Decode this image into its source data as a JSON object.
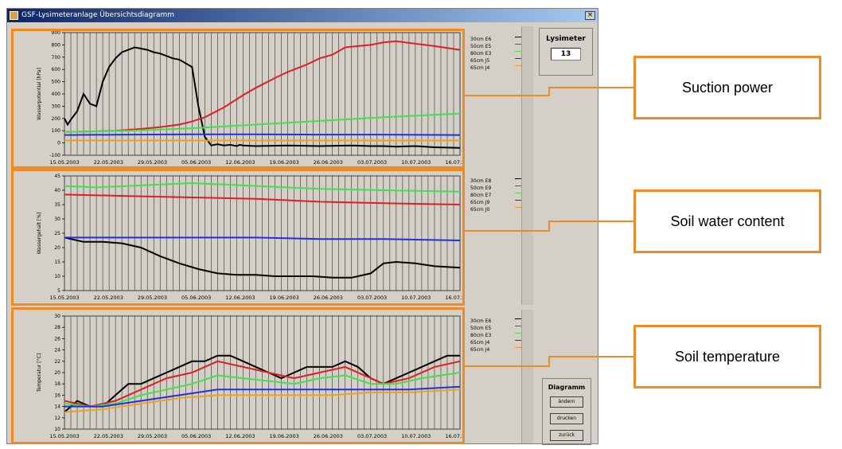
{
  "window": {
    "title": "GSF-Lysimeteranlage Übersichtsdiagramm",
    "close": "×",
    "lysimeter_label": "Lysimeter",
    "lysimeter_value": "13",
    "diagram_label": "Diagramm",
    "buttons": [
      "ändern",
      "drucken",
      "zurück"
    ]
  },
  "callouts": [
    "Suction power",
    "Soil water content",
    "Soil temperature"
  ],
  "colors": {
    "black": "#000000",
    "red": "#e02020",
    "green": "#40e050",
    "blue": "#2030e0",
    "orange": "#f0a020",
    "accent": "#f08a24"
  },
  "chart_data": [
    {
      "type": "line",
      "ylabel": "Wasserpotential [hPa]",
      "ylim": [
        -100,
        900
      ],
      "yticks": [
        "900",
        "800",
        "700",
        "600",
        "500",
        "400",
        "300",
        "200",
        "100",
        "0",
        "-100"
      ],
      "xlabels": [
        "15.05.2003",
        "22.05.2003",
        "29.05.2003",
        "05.06.2003",
        "12.06.2003",
        "19.06.2003",
        "26.06.2003",
        "03.07.2003",
        "10.07.2003",
        "16.07.2003"
      ],
      "legend": [
        {
          "name": "30cm E6",
          "color": "#000000"
        },
        {
          "name": "50cm E5",
          "color": "#e02020"
        },
        {
          "name": "80cm E3",
          "color": "#40e050"
        },
        {
          "name": "65cm J5",
          "color": "#2030e0"
        },
        {
          "name": "65cm J4",
          "color": "#f0a020"
        }
      ],
      "series": [
        {
          "color": "#000000",
          "x": [
            0,
            0.5,
            1,
            2,
            3,
            4,
            5,
            6,
            7,
            8,
            9,
            10,
            11,
            12,
            13,
            14,
            15,
            16,
            17,
            18,
            19,
            20,
            21,
            22,
            23,
            24,
            25,
            26,
            27,
            27.5,
            28,
            30,
            35,
            40,
            45,
            48,
            50,
            52,
            55,
            58,
            62
          ],
          "y": [
            200,
            150,
            190,
            260,
            400,
            320,
            300,
            500,
            620,
            690,
            740,
            760,
            780,
            770,
            760,
            740,
            730,
            710,
            690,
            680,
            650,
            620,
            300,
            50,
            -20,
            -10,
            -20,
            -15,
            -25,
            -15,
            -20,
            -25,
            -20,
            -25,
            -20,
            -25,
            -25,
            -30,
            -25,
            -35,
            -40
          ]
        },
        {
          "color": "#e02020",
          "x": [
            0,
            5,
            8,
            12,
            15,
            18,
            20,
            22,
            25,
            28,
            30,
            33,
            35,
            38,
            40,
            42,
            44,
            46,
            48,
            50,
            52,
            55,
            58,
            62
          ],
          "y": [
            90,
            95,
            100,
            115,
            130,
            150,
            175,
            210,
            290,
            390,
            450,
            530,
            580,
            640,
            690,
            720,
            780,
            790,
            800,
            820,
            830,
            810,
            790,
            760
          ]
        },
        {
          "color": "#40e050",
          "x": [
            0,
            10,
            20,
            30,
            40,
            50,
            62
          ],
          "y": [
            90,
            100,
            120,
            150,
            180,
            210,
            240
          ]
        },
        {
          "color": "#2030e0",
          "x": [
            0,
            10,
            20,
            30,
            40,
            50,
            62
          ],
          "y": [
            65,
            68,
            70,
            70,
            68,
            68,
            65
          ]
        },
        {
          "color": "#f0a020",
          "x": [
            0,
            62
          ],
          "y": [
            20,
            20
          ]
        }
      ]
    },
    {
      "type": "line",
      "ylabel": "Wassergehalt [%]",
      "ylim": [
        5,
        45
      ],
      "yticks": [
        "45",
        "40",
        "35",
        "30",
        "25",
        "20",
        "15",
        "10",
        "5"
      ],
      "xlabels": [
        "15.05.2003",
        "22.05.2003",
        "29.05.2003",
        "05.06.2003",
        "12.06.2003",
        "19.06.2003",
        "26.06.2003",
        "03.07.2003",
        "10.07.2003",
        "16.07.2003"
      ],
      "legend": [
        {
          "name": "30cm E8",
          "color": "#000000"
        },
        {
          "name": "50cm E9",
          "color": "#e02020"
        },
        {
          "name": "80cm E7",
          "color": "#40e050"
        },
        {
          "name": "65cm J9",
          "color": "#2030e0"
        },
        {
          "name": "65cm J0",
          "color": "#f0a020"
        }
      ],
      "series": [
        {
          "color": "#000000",
          "x": [
            0,
            3,
            6,
            9,
            12,
            15,
            18,
            21,
            24,
            27,
            30,
            33,
            36,
            39,
            42,
            45,
            46,
            48,
            50,
            52,
            55,
            58,
            62
          ],
          "y": [
            23.5,
            22,
            22,
            21.5,
            20,
            17,
            14.5,
            12.5,
            11,
            10.5,
            10.5,
            10,
            10,
            10,
            9.5,
            9.5,
            10,
            11,
            14.5,
            15,
            14.5,
            13.5,
            13
          ]
        },
        {
          "color": "#e02020",
          "x": [
            0,
            10,
            20,
            30,
            40,
            50,
            62
          ],
          "y": [
            38.5,
            38,
            37.5,
            37,
            36,
            35.5,
            35
          ]
        },
        {
          "color": "#40e050",
          "x": [
            0,
            5,
            10,
            15,
            20,
            25,
            30,
            40,
            50,
            62
          ],
          "y": [
            41.5,
            41,
            41.5,
            42,
            42.5,
            42,
            41.5,
            40.5,
            40,
            39.5
          ]
        },
        {
          "color": "#2030e0",
          "x": [
            0,
            10,
            20,
            30,
            40,
            50,
            62
          ],
          "y": [
            23.5,
            23.5,
            23.5,
            23.5,
            23,
            23,
            22.5
          ]
        }
      ]
    },
    {
      "type": "line",
      "ylabel": "Temperatur [°C]",
      "ylim": [
        10,
        30
      ],
      "yticks": [
        "30",
        "28",
        "26",
        "24",
        "22",
        "20",
        "18",
        "16",
        "14",
        "12",
        "10"
      ],
      "xlabels": [
        "15.05.2003",
        "22.05.2003",
        "29.05.2003",
        "05.06.2003",
        "12.06.2003",
        "19.06.2003",
        "26.06.2003",
        "03.07.2003",
        "10.07.2003",
        "16.07.2003"
      ],
      "legend": [
        {
          "name": "30cm E6",
          "color": "#000000"
        },
        {
          "name": "50cm E5",
          "color": "#e02020"
        },
        {
          "name": "80cm E3",
          "color": "#40e050"
        },
        {
          "name": "65cm J4",
          "color": "#2030e0"
        },
        {
          "name": "65cm J4",
          "color": "#f0a020"
        }
      ],
      "series": [
        {
          "color": "#000000",
          "x": [
            0,
            2,
            4,
            6,
            8,
            10,
            12,
            14,
            16,
            18,
            20,
            22,
            24,
            26,
            28,
            30,
            32,
            34,
            36,
            38,
            40,
            42,
            44,
            46,
            48,
            50,
            52,
            54,
            56,
            58,
            60,
            62
          ],
          "y": [
            13,
            15,
            14,
            14,
            16,
            18,
            18,
            19,
            20,
            21,
            22,
            22,
            23,
            23,
            22,
            21,
            20,
            19,
            20,
            21,
            21,
            21,
            22,
            21,
            19,
            18,
            19,
            20,
            21,
            22,
            23,
            23
          ]
        },
        {
          "color": "#e02020",
          "x": [
            0,
            4,
            8,
            12,
            16,
            20,
            24,
            28,
            32,
            36,
            40,
            44,
            48,
            50,
            54,
            58,
            62
          ],
          "y": [
            15,
            14,
            15,
            17,
            19,
            20,
            22,
            21,
            20,
            19,
            20,
            21,
            19,
            18,
            19,
            21,
            22
          ]
        },
        {
          "color": "#40e050",
          "x": [
            0,
            4,
            8,
            12,
            16,
            20,
            24,
            28,
            32,
            36,
            40,
            44,
            48,
            52,
            56,
            62
          ],
          "y": [
            14.5,
            14,
            14.5,
            16,
            17,
            18,
            19.5,
            19,
            18.5,
            18,
            19,
            19.5,
            18,
            18,
            19,
            20
          ]
        },
        {
          "color": "#2030e0",
          "x": [
            0,
            6,
            12,
            18,
            24,
            30,
            36,
            42,
            48,
            54,
            62
          ],
          "y": [
            14,
            14,
            15,
            16,
            17,
            17,
            17,
            17,
            17,
            17,
            17.5
          ]
        },
        {
          "color": "#f0a020",
          "x": [
            0,
            6,
            12,
            18,
            24,
            30,
            36,
            42,
            48,
            54,
            62
          ],
          "y": [
            13,
            13.5,
            14.5,
            15.5,
            16,
            16,
            16,
            16,
            16.5,
            16.5,
            17
          ]
        }
      ]
    }
  ]
}
